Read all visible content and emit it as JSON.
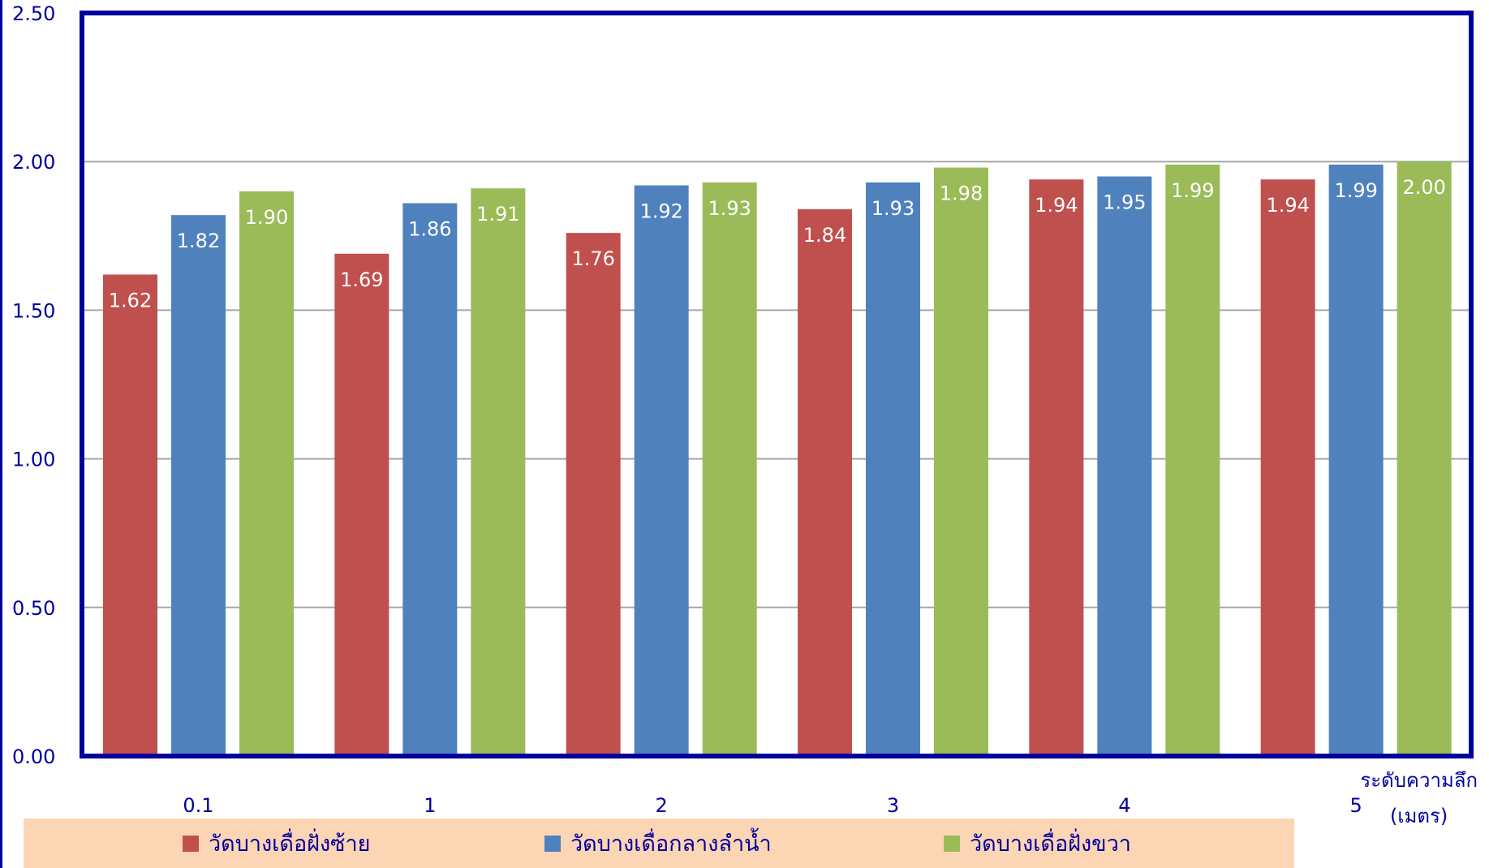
{
  "chart_data": {
    "type": "bar",
    "categories": [
      "0.1",
      "1",
      "2",
      "3",
      "4",
      "5"
    ],
    "series": [
      {
        "name": "วัดบางเดื่อฝั่งซ้าย",
        "color": "#c0504d",
        "values": [
          1.62,
          1.69,
          1.76,
          1.84,
          1.94,
          1.94
        ]
      },
      {
        "name": "วัดบางเดื่อกลางลำน้ำ",
        "color": "#4f81bd",
        "values": [
          1.82,
          1.86,
          1.92,
          1.93,
          1.95,
          1.99
        ]
      },
      {
        "name": "วัดบางเดื่อฝั่งขวา",
        "color": "#9bbb59",
        "values": [
          1.9,
          1.91,
          1.93,
          1.98,
          1.99,
          2.0
        ]
      }
    ],
    "data_labels": [
      [
        "1.62",
        "1.69",
        "1.76",
        "1.84",
        "1.94",
        "1.94"
      ],
      [
        "1.82",
        "1.86",
        "1.92",
        "1.93",
        "1.95",
        "1.99"
      ],
      [
        "1.90",
        "1.91",
        "1.93",
        "1.98",
        "1.99",
        "2.00"
      ]
    ],
    "y_ticks": [
      "0.00",
      "0.50",
      "1.00",
      "1.50",
      "2.00",
      "2.50"
    ],
    "ylim": [
      0,
      2.5
    ],
    "xlabel_line1": "ระดับความลึก",
    "xlabel_line2": "(เมตร)",
    "ylabel": "",
    "title": "",
    "grid": true,
    "legend_position": "bottom",
    "axis_color": "#00009c",
    "legend_background": "#fcd5b4"
  }
}
